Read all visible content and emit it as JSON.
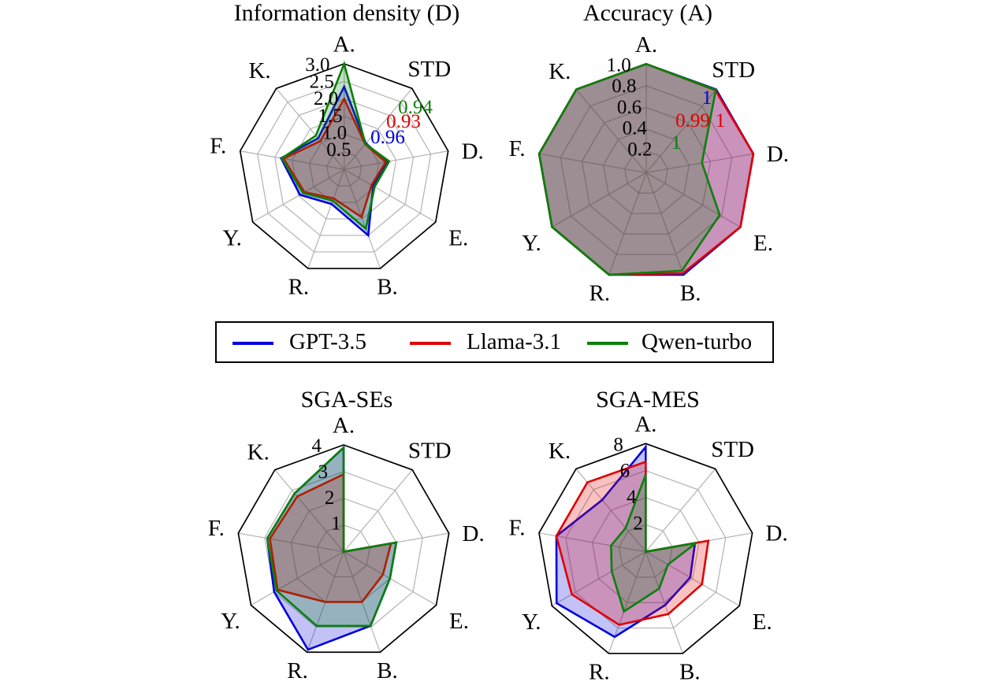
{
  "legend": {
    "items": [
      {
        "label": "GPT-3.5",
        "color": "#0000dd"
      },
      {
        "label": "Llama-3.1",
        "color": "#e00000"
      },
      {
        "label": "Qwen-turbo",
        "color": "#0b800b"
      }
    ]
  },
  "chart_data": [
    {
      "type": "radar",
      "title": "Information density (D)",
      "categories": [
        "A.",
        "STD",
        "D.",
        "E.",
        "B.",
        "R.",
        "Y.",
        "F.",
        "K."
      ],
      "rmax": 3.0,
      "ticks": [
        {
          "label": "0.5",
          "value": 0.5
        },
        {
          "label": "1.0",
          "value": 1.0
        },
        {
          "label": "1.5",
          "value": 1.5
        },
        {
          "label": "2.0",
          "value": 2.0
        },
        {
          "label": "2.5",
          "value": 2.5
        },
        {
          "label": "3.0",
          "value": 3.0
        }
      ],
      "series": [
        {
          "name": "GPT-3.5",
          "color": "#0000dd",
          "values": [
            2.35,
            0.96,
            1.23,
            0.95,
            2.0,
            1.05,
            1.45,
            1.82,
            1.15
          ]
        },
        {
          "name": "Llama-3.1",
          "color": "#e00000",
          "values": [
            2.0,
            0.93,
            1.2,
            0.9,
            1.45,
            0.88,
            1.3,
            1.75,
            1.05
          ]
        },
        {
          "name": "Qwen-turbo",
          "color": "#0b800b",
          "values": [
            3.0,
            0.94,
            1.3,
            1.0,
            1.8,
            0.95,
            1.35,
            1.8,
            1.25
          ]
        }
      ],
      "annotations": [
        {
          "text": "0.94",
          "color": "#0b800b",
          "x": 527,
          "y": 137
        },
        {
          "text": "0.93",
          "color": "#e00000",
          "x": 512,
          "y": 155
        },
        {
          "text": "0.96",
          "color": "#0000dd",
          "x": 492,
          "y": 175
        }
      ]
    },
    {
      "type": "radar",
      "title": "Accuracy (A)",
      "categories": [
        "A.",
        "STD",
        "D.",
        "E.",
        "B.",
        "R.",
        "Y.",
        "F.",
        "K."
      ],
      "rmax": 1.0,
      "ticks": [
        {
          "label": "0.2",
          "value": 0.2
        },
        {
          "label": "0.4",
          "value": 0.4
        },
        {
          "label": "0.6",
          "value": 0.6
        },
        {
          "label": "0.8",
          "value": 0.8
        },
        {
          "label": "1.0",
          "value": 1.0
        }
      ],
      "series": [
        {
          "name": "GPT-3.5",
          "color": "#0000dd",
          "values": [
            1.0,
            1.0,
            1.0,
            1.0,
            1.0,
            1.0,
            1.0,
            1.0,
            1.0
          ]
        },
        {
          "name": "Llama-3.1",
          "color": "#e00000",
          "values": [
            1.0,
            0.99,
            1.0,
            1.0,
            0.985,
            1.0,
            1.0,
            1.0,
            1.0
          ]
        },
        {
          "name": "Qwen-turbo",
          "color": "#0b800b",
          "values": [
            1.0,
            0.995,
            0.52,
            0.78,
            0.96,
            1.0,
            1.0,
            1.0,
            1.0
          ]
        }
      ],
      "annotations": [
        {
          "text": "1",
          "color": "#0000dd",
          "x": 897,
          "y": 125
        },
        {
          "text": "0.99",
          "color": "#e00000",
          "x": 879,
          "y": 154
        },
        {
          "text": "1",
          "color": "#e00000",
          "x": 914,
          "y": 154
        },
        {
          "text": "1",
          "color": "#0b800b",
          "x": 858,
          "y": 182
        }
      ]
    },
    {
      "type": "radar",
      "title": "SGA-SEs",
      "categories": [
        "A.",
        "STD",
        "D.",
        "E.",
        "B.",
        "R.",
        "Y.",
        "F.",
        "K."
      ],
      "rmax": 4.0,
      "ticks": [
        {
          "label": "1",
          "value": 1
        },
        {
          "label": "2",
          "value": 2
        },
        {
          "label": "3",
          "value": 3
        },
        {
          "label": "4",
          "value": 4
        }
      ],
      "series": [
        {
          "name": "GPT-3.5",
          "color": "#0000dd",
          "values": [
            3.9,
            0,
            2.0,
            2.0,
            2.95,
            3.9,
            3.0,
            2.9,
            2.85
          ]
        },
        {
          "name": "Llama-3.1",
          "color": "#e00000",
          "values": [
            2.9,
            0,
            1.8,
            1.7,
            2.0,
            2.0,
            2.85,
            2.8,
            2.7
          ]
        },
        {
          "name": "Qwen-turbo",
          "color": "#0b800b",
          "values": [
            3.9,
            0,
            2.0,
            2.0,
            2.95,
            2.95,
            2.9,
            2.9,
            2.85
          ]
        }
      ],
      "annotations": []
    },
    {
      "type": "radar",
      "title": "SGA-MES",
      "categories": [
        "A.",
        "STD",
        "D.",
        "E.",
        "B.",
        "R.",
        "Y.",
        "F.",
        "K."
      ],
      "rmax": 8.0,
      "ticks": [
        {
          "label": "2",
          "value": 2
        },
        {
          "label": "4",
          "value": 4
        },
        {
          "label": "6",
          "value": 6
        },
        {
          "label": "8",
          "value": 8
        }
      ],
      "series": [
        {
          "name": "GPT-3.5",
          "color": "#0000dd",
          "values": [
            7.75,
            0,
            3.7,
            3.8,
            4.2,
            6.7,
            7.6,
            6.7,
            5.0
          ]
        },
        {
          "name": "Llama-3.1",
          "color": "#e00000",
          "values": [
            6.65,
            0,
            4.7,
            4.8,
            4.9,
            5.75,
            6.3,
            6.7,
            6.7
          ]
        },
        {
          "name": "Qwen-turbo",
          "color": "#0b800b",
          "values": [
            5.7,
            0,
            3.8,
            1.9,
            2.9,
            4.7,
            2.9,
            2.6,
            2.3
          ]
        }
      ],
      "annotations": []
    }
  ]
}
